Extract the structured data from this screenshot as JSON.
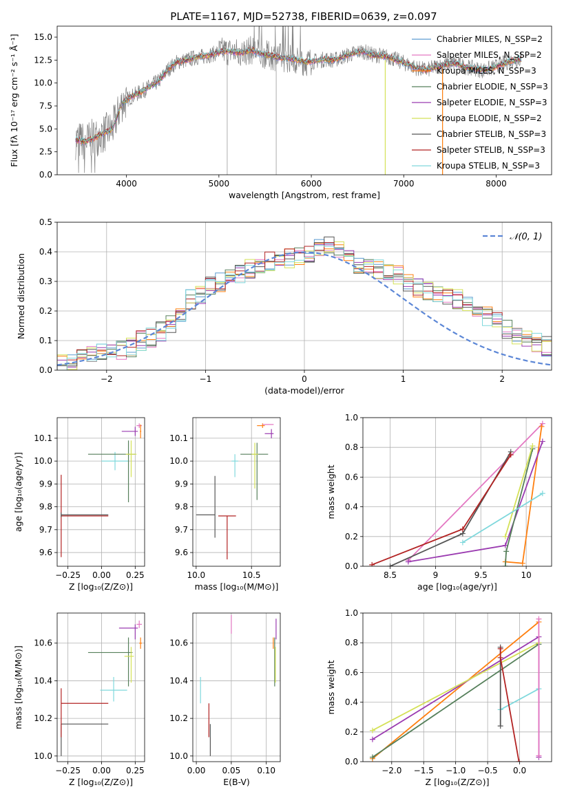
{
  "figure_title": "PLATE=1167, MJD=52738, FIBERID=0639, z=0.097",
  "chart_data": [
    {
      "id": "spectrum",
      "type": "line",
      "xlabel": "wavelength [Angstrom, rest frame]",
      "ylabel": "Flux [fλ 10⁻¹⁷ erg cm⁻² s⁻¹ Å⁻¹]",
      "xlim": [
        3250,
        8600
      ],
      "ylim": [
        0,
        16.2
      ],
      "xticks": [
        4000,
        5000,
        6000,
        7000,
        8000
      ],
      "yticks": [
        0.0,
        2.5,
        5.0,
        7.5,
        10.0,
        12.5,
        15.0
      ],
      "legend_position": "right",
      "legend": [
        {
          "label": "Chabrier MILES, N_SSP=2",
          "color": "#5a9ad0"
        },
        {
          "label": "Salpeter MILES, N_SSP=2",
          "color": "#e377c2"
        },
        {
          "label": "Kroupa MILES, N_SSP=3",
          "color": "#ff7f0e"
        },
        {
          "label": "Chabrier ELODIE, N_SSP=3",
          "color": "#557f5a"
        },
        {
          "label": "Salpeter ELODIE, N_SSP=3",
          "color": "#9a3ab0"
        },
        {
          "label": "Kroupa ELODIE, N_SSP=2",
          "color": "#d4e157"
        },
        {
          "label": "Chabrier STELIB, N_SSP=3",
          "color": "#555555"
        },
        {
          "label": "Salpeter STELIB, N_SSP=3",
          "color": "#b22222"
        },
        {
          "label": "Kroupa STELIB, N_SSP=3",
          "color": "#7fd8dc"
        }
      ],
      "continuum": {
        "x": [
          3450,
          3550,
          3650,
          3750,
          3850,
          3950,
          4050,
          4150,
          4250,
          4350,
          4450,
          4550,
          4650,
          4750,
          4850,
          4950,
          5050,
          5150,
          5250,
          5350,
          5450,
          5550,
          5650,
          5750,
          5850,
          5950,
          6050,
          6150,
          6250,
          6350,
          6450,
          6550,
          6650,
          6750,
          6850,
          6950,
          7050,
          7150,
          7250,
          7350,
          7450,
          7550,
          7650,
          7750,
          7850,
          7950,
          8050,
          8150,
          8250
        ],
        "y": [
          3.8,
          3.6,
          4.0,
          4.5,
          5.0,
          7.8,
          8.5,
          9.0,
          9.6,
          10.2,
          11.5,
          12.3,
          12.5,
          12.8,
          12.9,
          13.2,
          13.5,
          13.4,
          13.3,
          13.6,
          13.2,
          13.0,
          12.8,
          12.7,
          12.5,
          12.3,
          12.4,
          12.6,
          12.5,
          12.9,
          13.2,
          13.5,
          13.1,
          13.0,
          12.8,
          12.4,
          12.0,
          11.6,
          11.4,
          11.8,
          12.0,
          12.2,
          11.8,
          11.6,
          11.4,
          11.6,
          12.0,
          12.4,
          12.6
        ]
      }
    },
    {
      "id": "residuals",
      "type": "line",
      "xlabel": "(data-model)/error",
      "ylabel": "Normed distribution",
      "xlim": [
        -2.5,
        2.5
      ],
      "ylim": [
        0,
        0.5
      ],
      "xticks": [
        -2,
        -1,
        0,
        1,
        2
      ],
      "yticks": [
        0.0,
        0.1,
        0.2,
        0.3,
        0.4,
        0.5
      ],
      "legend_position": "upper right",
      "legend_label": "𝒩(0, 1)",
      "gaussian": {
        "mean": 0,
        "sigma": 1,
        "color": "#5b86d6",
        "style": "dashed"
      },
      "histogram_mean": [
        0.02,
        0.025,
        0.04,
        0.05,
        0.06,
        0.065,
        0.07,
        0.08,
        0.1,
        0.11,
        0.13,
        0.16,
        0.2,
        0.24,
        0.26,
        0.28,
        0.3,
        0.31,
        0.32,
        0.34,
        0.36,
        0.37,
        0.38,
        0.38,
        0.39,
        0.4,
        0.41,
        0.42,
        0.4,
        0.38,
        0.36,
        0.35,
        0.34,
        0.33,
        0.32,
        0.3,
        0.28,
        0.27,
        0.26,
        0.25,
        0.24,
        0.22,
        0.2,
        0.18,
        0.16,
        0.14,
        0.12,
        0.1,
        0.09,
        0.08
      ]
    },
    {
      "id": "age-vs-Z",
      "type": "scatter",
      "xlabel": "Z [log₁₀(Z/Z⊙)]",
      "ylabel": "age [log₁₀(age/yr)]",
      "xlim": [
        -0.33,
        0.32
      ],
      "ylim": [
        9.54,
        10.19
      ],
      "xticks": [
        -0.25,
        0.0,
        0.25
      ],
      "xticklabels": [
        "−0.25",
        "0.00",
        "0.25"
      ],
      "yticks": [
        9.6,
        9.7,
        9.8,
        9.9,
        10.0,
        10.1
      ],
      "points": [
        {
          "x": -0.3,
          "y": 9.76,
          "xerr": [
            0,
            0.35
          ],
          "yerr": [
            0.18,
            0.18
          ],
          "color": "#b22222"
        },
        {
          "x": -0.3,
          "y": 9.765,
          "xerr": [
            0,
            0.35
          ],
          "yerr": [
            0.01,
            0.01
          ],
          "color": "#555555"
        },
        {
          "x": 0.1,
          "y": 10.0,
          "xerr": [
            0.1,
            0.1
          ],
          "yerr": [
            0.04,
            0.04
          ],
          "color": "#7fd8dc"
        },
        {
          "x": 0.2,
          "y": 10.03,
          "xerr": [
            0.3,
            0.05
          ],
          "yerr": [
            0.21,
            0.06
          ],
          "color": "#557f5a"
        },
        {
          "x": 0.22,
          "y": 10.03,
          "xerr": [
            0.04,
            0.04
          ],
          "yerr": [
            0.1,
            0.06
          ],
          "color": "#d4e157"
        },
        {
          "x": 0.25,
          "y": 10.13,
          "xerr": [
            0.1,
            0.02
          ],
          "yerr": [
            0.02,
            0.02
          ],
          "color": "#9a3ab0"
        },
        {
          "x": 0.28,
          "y": 10.155,
          "xerr": [
            0.02,
            0.02
          ],
          "yerr": [
            0.01,
            0.01
          ],
          "color": "#e377c2"
        },
        {
          "x": 0.29,
          "y": 10.13,
          "xerr": [
            0.005,
            0.005
          ],
          "yerr": [
            0.03,
            0.03
          ],
          "color": "#ff7f0e"
        }
      ]
    },
    {
      "id": "age-vs-mass",
      "type": "scatter",
      "xlabel": "mass [log₁₀(M/M⊙)]",
      "ylabel": "",
      "xlim": [
        9.97,
        10.76
      ],
      "ylim": [
        9.54,
        10.19
      ],
      "xticks": [
        10.0,
        10.5
      ],
      "xticklabels": [
        "10.0",
        "10.5"
      ],
      "yticks": [
        9.6,
        9.7,
        9.8,
        9.9,
        10.0,
        10.1
      ],
      "points": [
        {
          "x": 10.17,
          "y": 9.765,
          "xerr": [
            0.17,
            0.0
          ],
          "yerr": [
            0.1,
            0.17
          ],
          "color": "#555555"
        },
        {
          "x": 10.28,
          "y": 9.76,
          "xerr": [
            0.08,
            0.08
          ],
          "yerr": [
            0.19,
            0.0
          ],
          "color": "#b22222"
        },
        {
          "x": 10.35,
          "y": 10.0,
          "xerr": [
            0.03,
            0.03
          ],
          "yerr": [
            0.07,
            0.03
          ],
          "color": "#7fd8dc"
        },
        {
          "x": 10.55,
          "y": 10.03,
          "xerr": [
            0.15,
            0.1
          ],
          "yerr": [
            0.2,
            0.05
          ],
          "color": "#557f5a"
        },
        {
          "x": 10.53,
          "y": 10.03,
          "xerr": [
            0.03,
            0.03
          ],
          "yerr": [
            0.15,
            0.05
          ],
          "color": "#d4e157"
        },
        {
          "x": 10.6,
          "y": 10.155,
          "xerr": [
            0.05,
            0.02
          ],
          "yerr": [
            0.01,
            0.01
          ],
          "color": "#ff7f0e"
        },
        {
          "x": 10.68,
          "y": 10.12,
          "xerr": [
            0.06,
            0.02
          ],
          "yerr": [
            0.02,
            0.02
          ],
          "color": "#9a3ab0"
        },
        {
          "x": 10.65,
          "y": 10.16,
          "xerr": [
            0.05,
            0.05
          ],
          "yerr": [
            0.0,
            0.0
          ],
          "color": "#e377c2"
        }
      ]
    },
    {
      "id": "massweight-vs-age",
      "type": "line",
      "xlabel": "age [log₁₀(age/yr)]",
      "ylabel": "mass weight",
      "xlim": [
        8.2,
        10.28
      ],
      "ylim": [
        0,
        1
      ],
      "xticks": [
        8.5,
        9.0,
        9.5,
        10.0
      ],
      "yticks": [
        0.0,
        0.2,
        0.4,
        0.6,
        0.8,
        1.0
      ],
      "series": [
        {
          "color": "#e377c2",
          "x": [
            8.7,
            10.18
          ],
          "y": [
            0.04,
            0.96
          ]
        },
        {
          "color": "#ff7f0e",
          "x": [
            9.77,
            9.96,
            10.17
          ],
          "y": [
            0.03,
            0.02,
            0.94
          ]
        },
        {
          "color": "#9a3ab0",
          "x": [
            8.7,
            9.77,
            10.18
          ],
          "y": [
            0.03,
            0.14,
            0.84
          ]
        },
        {
          "color": "#557f5a",
          "x": [
            9.77,
            9.78,
            10.07
          ],
          "y": [
            0.0,
            0.1,
            0.79
          ]
        },
        {
          "color": "#d4e157",
          "x": [
            9.77,
            10.07
          ],
          "y": [
            0.2,
            0.81
          ]
        },
        {
          "color": "#7fd8dc",
          "x": [
            9.3,
            10.18
          ],
          "y": [
            0.16,
            0.49
          ]
        },
        {
          "color": "#555555",
          "x": [
            8.5,
            9.3,
            9.83
          ],
          "y": [
            0.0,
            0.22,
            0.77
          ]
        },
        {
          "color": "#b22222",
          "x": [
            8.3,
            9.3,
            9.83
          ],
          "y": [
            0.01,
            0.25,
            0.75
          ]
        }
      ]
    },
    {
      "id": "mass-vs-Z",
      "type": "scatter",
      "xlabel": "Z [log₁₀(Z/Z⊙)]",
      "ylabel": "mass [log₁₀(M/M⊙)]",
      "xlim": [
        -0.33,
        0.32
      ],
      "ylim": [
        9.97,
        10.76
      ],
      "xticks": [
        -0.25,
        0.0,
        0.25
      ],
      "xticklabels": [
        "−0.25",
        "0.00",
        "0.25"
      ],
      "yticks": [
        10.0,
        10.2,
        10.4,
        10.6
      ],
      "points": [
        {
          "x": -0.3,
          "y": 10.17,
          "xerr": [
            0,
            0.35
          ],
          "yerr": [
            0.17,
            0.0
          ],
          "color": "#555555"
        },
        {
          "x": -0.3,
          "y": 10.28,
          "xerr": [
            0,
            0.35
          ],
          "yerr": [
            0.18,
            0.08
          ],
          "color": "#b22222"
        },
        {
          "x": 0.09,
          "y": 10.35,
          "xerr": [
            0.1,
            0.1
          ],
          "yerr": [
            0.06,
            0.07
          ],
          "color": "#7fd8dc"
        },
        {
          "x": 0.2,
          "y": 10.55,
          "xerr": [
            0.3,
            0.03
          ],
          "yerr": [
            0.18,
            0.08
          ],
          "color": "#557f5a"
        },
        {
          "x": 0.22,
          "y": 10.53,
          "xerr": [
            0.05,
            0.02
          ],
          "yerr": [
            0.14,
            0.05
          ],
          "color": "#d4e157"
        },
        {
          "x": 0.25,
          "y": 10.68,
          "xerr": [
            0.12,
            0.02
          ],
          "yerr": [
            0.06,
            0.02
          ],
          "color": "#9a3ab0"
        },
        {
          "x": 0.28,
          "y": 10.7,
          "xerr": [
            0.02,
            0.02
          ],
          "yerr": [
            0.02,
            0.02
          ],
          "color": "#e377c2"
        },
        {
          "x": 0.29,
          "y": 10.6,
          "xerr": [
            0.01,
            0.01
          ],
          "yerr": [
            0.03,
            0.03
          ],
          "color": "#ff7f0e"
        }
      ]
    },
    {
      "id": "mass-vs-EBV",
      "type": "scatter",
      "xlabel": "E(B-V)",
      "ylabel": "",
      "xlim": [
        -0.005,
        0.12
      ],
      "ylim": [
        9.97,
        10.76
      ],
      "xticks": [
        0.0,
        0.05,
        0.1
      ],
      "xticklabels": [
        "0.00",
        "0.05",
        "0.10"
      ],
      "yticks": [
        10.0,
        10.2,
        10.4,
        10.6
      ],
      "points": [
        {
          "x": 0.006,
          "y": 10.35,
          "xerr": [
            0,
            0
          ],
          "yerr": [
            0.07,
            0.07
          ],
          "color": "#7fd8dc"
        },
        {
          "x": 0.018,
          "y": 10.28,
          "xerr": [
            0,
            0
          ],
          "yerr": [
            0.18,
            0.0
          ],
          "color": "#b22222"
        },
        {
          "x": 0.02,
          "y": 10.17,
          "xerr": [
            0,
            0
          ],
          "yerr": [
            0.17,
            0.0
          ],
          "color": "#555555"
        },
        {
          "x": 0.05,
          "y": 10.7,
          "xerr": [
            0,
            0
          ],
          "yerr": [
            0.05,
            0.05
          ],
          "color": "#e377c2"
        },
        {
          "x": 0.11,
          "y": 10.6,
          "xerr": [
            0,
            0
          ],
          "yerr": [
            0.03,
            0.03
          ],
          "color": "#ff7f0e"
        },
        {
          "x": 0.112,
          "y": 10.55,
          "xerr": [
            0,
            0
          ],
          "yerr": [
            0.18,
            0.08
          ],
          "color": "#557f5a"
        },
        {
          "x": 0.113,
          "y": 10.53,
          "xerr": [
            0,
            0
          ],
          "yerr": [
            0.14,
            0.05
          ],
          "color": "#d4e157"
        },
        {
          "x": 0.114,
          "y": 10.68,
          "xerr": [
            0,
            0
          ],
          "yerr": [
            0.06,
            0.05
          ],
          "color": "#9a3ab0"
        }
      ]
    },
    {
      "id": "massweight-vs-Z",
      "type": "line",
      "xlabel": "Z [log₁₀(Z/Z⊙)]",
      "ylabel": "mass weight",
      "xlim": [
        -2.45,
        0.5
      ],
      "ylim": [
        0,
        1
      ],
      "xticks": [
        -2.0,
        -1.5,
        -1.0,
        -0.5,
        0.0
      ],
      "xticklabels": [
        "−2.0",
        "−1.5",
        "−1.0",
        "−0.5",
        "0.0"
      ],
      "yticks": [
        0.0,
        0.2,
        0.4,
        0.6,
        0.8,
        1.0
      ],
      "series": [
        {
          "color": "#ff7f0e",
          "x": [
            -2.3,
            0.3
          ],
          "y": [
            0.02,
            0.94
          ]
        },
        {
          "color": "#9a3ab0",
          "x": [
            -2.3,
            0.3,
            0.3
          ],
          "y": [
            0.15,
            0.84,
            0.03
          ]
        },
        {
          "color": "#d4e157",
          "x": [
            -2.3,
            0.3
          ],
          "y": [
            0.21,
            0.8
          ]
        },
        {
          "color": "#557f5a",
          "x": [
            -2.3,
            0.3
          ],
          "y": [
            0.03,
            0.79
          ]
        },
        {
          "color": "#7fd8dc",
          "x": [
            -0.3,
            0.3
          ],
          "y": [
            0.35,
            0.49
          ]
        },
        {
          "color": "#555555",
          "x": [
            -0.3,
            -0.3
          ],
          "y": [
            0.24,
            0.77
          ]
        },
        {
          "color": "#b22222",
          "x": [
            -0.3,
            -0.3,
            -0.01
          ],
          "y": [
            0.76,
            0.7,
            0.0
          ]
        },
        {
          "color": "#e377c2",
          "x": [
            0.3,
            0.3
          ],
          "y": [
            0.96,
            0.04
          ]
        }
      ]
    }
  ]
}
